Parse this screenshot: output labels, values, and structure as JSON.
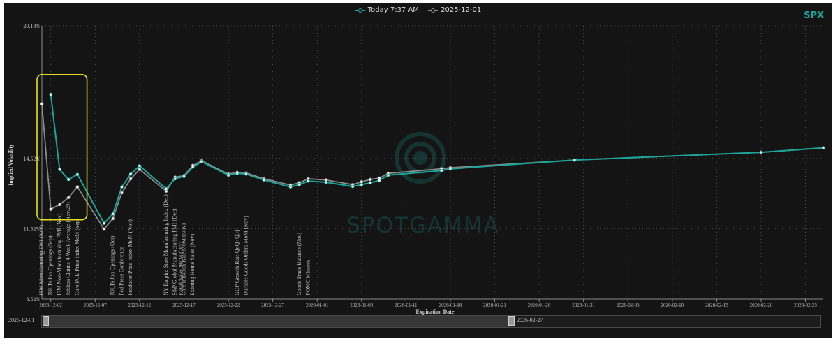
{
  "legend": {
    "today_label": "Today 7:37 AM",
    "prior_label": "2025-12-01"
  },
  "ticker": "SPX",
  "watermark": "SPOTGAMMA",
  "range": {
    "start": "2025-12-01",
    "end": "2026-02-27"
  },
  "colors": {
    "today": "#1aa59a",
    "prior": "#8a8a8a",
    "highlight": "#e3dc23",
    "background": "#141414"
  },
  "chart_data": {
    "type": "line",
    "title": "",
    "xlabel": "Expiration Date",
    "ylabel": "Implied Volatility",
    "x_range": [
      "2025-12-01",
      "2026-02-27"
    ],
    "ylim": [
      8.52,
      20.18
    ],
    "y_ticks": [
      {
        "value": 8.52,
        "label": "8.52%"
      },
      {
        "value": 11.52,
        "label": "11.52%"
      },
      {
        "value": 14.52,
        "label": "14.52%"
      },
      {
        "value": 20.18,
        "label": "20.18%"
      }
    ],
    "x_ticks": [
      "2025-12-02",
      "2025-12-07",
      "2025-12-12",
      "2025-12-17",
      "2025-12-22",
      "2025-12-27",
      "2026-01-01",
      "2026-01-06",
      "2026-01-11",
      "2026-01-16",
      "2026-01-21",
      "2026-01-26",
      "2026-01-31",
      "2026-02-05",
      "2026-02-10",
      "2026-02-15",
      "2026-02-20",
      "2026-02-25"
    ],
    "grid": true,
    "series": [
      {
        "name": "Today 7:37 AM",
        "points": [
          [
            "2025-12-02",
            17.25
          ],
          [
            "2025-12-03",
            14.05
          ],
          [
            "2025-12-04",
            13.62
          ],
          [
            "2025-12-05",
            13.83
          ],
          [
            "2025-12-08",
            11.75
          ],
          [
            "2025-12-09",
            12.15
          ],
          [
            "2025-12-10",
            13.3
          ],
          [
            "2025-12-11",
            13.85
          ],
          [
            "2025-12-12",
            14.2
          ],
          [
            "2025-12-15",
            13.22
          ],
          [
            "2025-12-16",
            13.65
          ],
          [
            "2025-12-17",
            13.75
          ],
          [
            "2025-12-18",
            14.15
          ],
          [
            "2025-12-19",
            14.38
          ],
          [
            "2025-12-22",
            13.8
          ],
          [
            "2025-12-23",
            13.88
          ],
          [
            "2025-12-24",
            13.85
          ],
          [
            "2025-12-26",
            13.6
          ],
          [
            "2025-12-29",
            13.3
          ],
          [
            "2025-12-30",
            13.4
          ],
          [
            "2025-12-31",
            13.55
          ],
          [
            "2026-01-02",
            13.5
          ],
          [
            "2026-01-05",
            13.32
          ],
          [
            "2026-01-06",
            13.4
          ],
          [
            "2026-01-07",
            13.48
          ],
          [
            "2026-01-08",
            13.58
          ],
          [
            "2026-01-09",
            13.8
          ],
          [
            "2026-01-15",
            14.0
          ],
          [
            "2026-01-16",
            14.07
          ],
          [
            "2026-01-30",
            14.45
          ],
          [
            "2026-02-20",
            14.78
          ],
          [
            "2026-02-27",
            14.97
          ]
        ]
      },
      {
        "name": "2025-12-01",
        "points": [
          [
            "2025-12-01",
            16.85
          ],
          [
            "2025-12-02",
            12.35
          ],
          [
            "2025-12-03",
            12.55
          ],
          [
            "2025-12-04",
            12.85
          ],
          [
            "2025-12-05",
            13.3
          ],
          [
            "2025-12-08",
            11.5
          ],
          [
            "2025-12-09",
            11.95
          ],
          [
            "2025-12-10",
            13.05
          ],
          [
            "2025-12-11",
            13.65
          ],
          [
            "2025-12-12",
            14.05
          ],
          [
            "2025-12-15",
            13.12
          ],
          [
            "2025-12-16",
            13.72
          ],
          [
            "2025-12-17",
            13.78
          ],
          [
            "2025-12-18",
            14.22
          ],
          [
            "2025-12-19",
            14.42
          ],
          [
            "2025-12-22",
            13.85
          ],
          [
            "2025-12-23",
            13.92
          ],
          [
            "2025-12-24",
            13.9
          ],
          [
            "2025-12-26",
            13.65
          ],
          [
            "2025-12-29",
            13.38
          ],
          [
            "2025-12-30",
            13.48
          ],
          [
            "2025-12-31",
            13.65
          ],
          [
            "2026-01-02",
            13.6
          ],
          [
            "2026-01-05",
            13.4
          ],
          [
            "2026-01-06",
            13.52
          ],
          [
            "2026-01-07",
            13.62
          ],
          [
            "2026-01-08",
            13.68
          ],
          [
            "2026-01-09",
            13.88
          ],
          [
            "2026-01-15",
            14.08
          ],
          [
            "2026-01-16",
            14.12
          ],
          [
            "2026-01-30",
            14.45
          ],
          [
            "2026-02-20",
            14.78
          ],
          [
            "2026-02-27",
            14.97
          ]
        ]
      }
    ],
    "events": [
      {
        "date": "2025-12-01",
        "label": "ISM Manufacturing PMI (Nov)"
      },
      {
        "date": "2025-12-02",
        "label": "JOLTs Job Openings (Sep)"
      },
      {
        "date": "2025-12-03",
        "label": "ISM Non-Manufacturing PMI (Nov)"
      },
      {
        "date": "2025-12-04",
        "label": "Jobless Claims 4-Week Average (Nov/29)"
      },
      {
        "date": "2025-12-05",
        "label": "Core PCE Price Index MoM (Sep)"
      },
      {
        "date": "2025-12-09",
        "label": "JOLTs Job Openings (Oct)"
      },
      {
        "date": "2025-12-10",
        "label": "Fed Press Conference"
      },
      {
        "date": "2025-12-11",
        "label": "Producer Price Index MoM (Nov)"
      },
      {
        "date": "2025-12-15",
        "label": "NY Empire State Manufacturing Index (Dec)"
      },
      {
        "date": "2025-12-16",
        "label": "S&P Global Manufacturing PMI (Dec)"
      },
      {
        "date": "2025-12-16",
        "label": "Retail Sales MoM (Oct)"
      },
      {
        "date": "2025-12-17",
        "label": "Core Inflation Rate MoM (Nov)"
      },
      {
        "date": "2025-12-18",
        "label": "Existing Home Sales (Nov)"
      },
      {
        "date": "2025-12-23",
        "label": "GDP Growth Rate QoQ (Q3)"
      },
      {
        "date": "2025-12-24",
        "label": "Durable Goods Orders MoM (Nov)"
      },
      {
        "date": "2025-12-30",
        "label": "Goods Trade Balance (Nov)"
      },
      {
        "date": "2025-12-31",
        "label": "FOMC Minutes"
      }
    ],
    "highlight": {
      "from": "2025-12-01",
      "to": "2025-12-06"
    }
  }
}
